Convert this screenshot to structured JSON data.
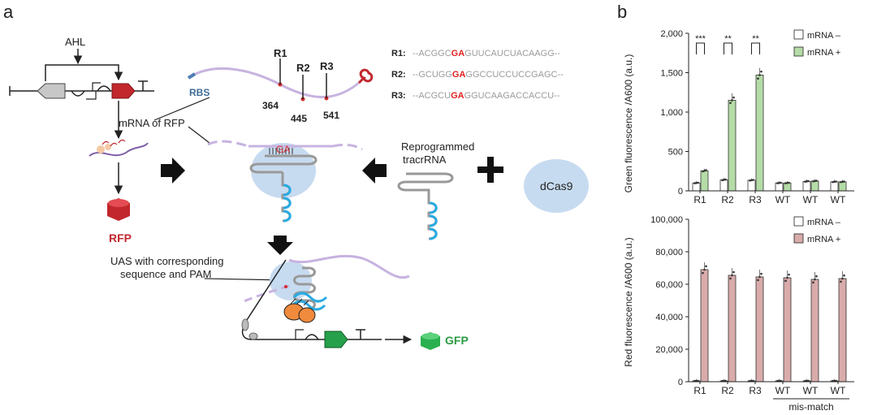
{
  "panel_labels": {
    "a": "a",
    "b": "b"
  },
  "schematic": {
    "inducer": "AHL",
    "rbs": "RBS",
    "mrna_label": "mRNA of RFP",
    "rfp_label": "RFP",
    "gfp_label": "GFP",
    "ga": "GA",
    "tracr_line1": "Reprogrammed",
    "tracr_line2": "tracrRNA",
    "dcas9": "dCas9",
    "uas_line1": "UAS with corresponding",
    "uas_line2": "sequence and PAM",
    "sites": [
      {
        "label": "R1",
        "pos": "364"
      },
      {
        "label": "R2",
        "pos": "445"
      },
      {
        "label": "R3",
        "pos": "541"
      }
    ],
    "sequences": [
      {
        "label": "R1:",
        "pre": "--ACGGC",
        "hl": "GA",
        "post": "GUUCAUCUACAAGG--"
      },
      {
        "label": "R2:",
        "pre": "--GCUGG",
        "hl": "GA",
        "post": "GGCCUCCUCCGAGC--"
      },
      {
        "label": "R3:",
        "pre": "--ACGCU",
        "hl": "GA",
        "post": "GGUCAAGACCACCU--"
      }
    ]
  },
  "chart_data": [
    {
      "type": "bar",
      "categories": [
        "R1",
        "R2",
        "R3",
        "WT",
        "WT",
        "WT"
      ],
      "ylabel": "Green fluorescence /A600 (a.u.)",
      "ylim": [
        0,
        2000
      ],
      "yticks": [
        "0",
        "500",
        "1,000",
        "1,500",
        "2,000"
      ],
      "yticks_values": [
        0,
        500,
        1000,
        1500,
        2000
      ],
      "series": [
        {
          "name": "mRNA –",
          "values": [
            100,
            140,
            135,
            100,
            120,
            115
          ],
          "color": "#ffffff"
        },
        {
          "name": "mRNA +",
          "values": [
            255,
            1150,
            1470,
            100,
            125,
            115
          ],
          "color": "#b5dca7"
        }
      ],
      "significance": [
        "***",
        "**",
        "**"
      ]
    },
    {
      "type": "bar",
      "categories": [
        "R1",
        "R2",
        "R3",
        "WT",
        "WT",
        "WT"
      ],
      "ylabel": "Red fluorescence /A600 (a.u.)",
      "ylim": [
        0,
        100000
      ],
      "yticks": [
        "0",
        "20,000",
        "40,000",
        "60,000",
        "80,000",
        "100,000"
      ],
      "yticks_values": [
        0,
        20000,
        40000,
        60000,
        80000,
        100000
      ],
      "series": [
        {
          "name": "mRNA –",
          "values": [
            500,
            500,
            500,
            500,
            500,
            500
          ],
          "color": "#ffffff"
        },
        {
          "name": "mRNA +",
          "values": [
            69000,
            65500,
            64500,
            64000,
            63000,
            63500
          ],
          "color": "#d9abab"
        }
      ],
      "group_label": "mis-match"
    }
  ]
}
